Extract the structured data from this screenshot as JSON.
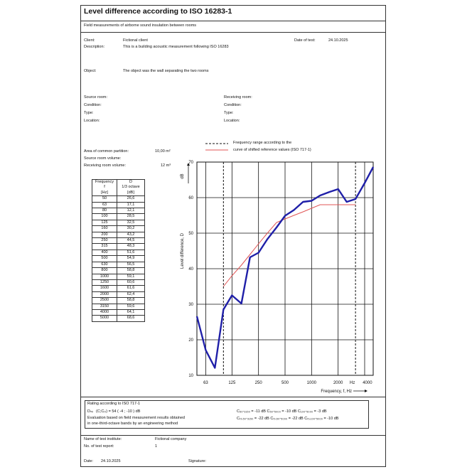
{
  "title": "Level difference according to ISO 16283-1",
  "subtitle": "Field measurements of airborne sound insulation between rooms",
  "client": {
    "label": "Client:",
    "value": "Fictional client"
  },
  "description": {
    "label": "Description:",
    "value": "This is a building acoustic measurement following ISO 16283"
  },
  "date_of_test": {
    "label": "Date of test:",
    "value": "24.10.2025"
  },
  "object": {
    "label": "Object:",
    "value": "The object was the wall separating the two rooms"
  },
  "source_room": {
    "room": "Source room:",
    "condition": "Condition:",
    "type": "Type:",
    "location": "Location:"
  },
  "receiving_room": {
    "room": "Receiving room:",
    "condition": "Condition:",
    "type": "Type:",
    "location": "Location:"
  },
  "legend": {
    "freq_range": "Frequency range according to the",
    "shifted_curve": "curve of shifted reference values (ISO 717-1)"
  },
  "partition": {
    "area_label": "Area of common partition:",
    "area_value": "10,00 m²",
    "source_volume_label": "Source room volume:",
    "receiving_volume_label": "Receiving room volume:",
    "receiving_volume_value": "12 m³"
  },
  "table": {
    "h1": "Frequency",
    "h1b": "f",
    "h1c": "[Hz]",
    "h2": "D",
    "h2b": "1/3 octave",
    "h2c": "[dB]",
    "rows": [
      [
        "50",
        "26,6"
      ],
      [
        "63",
        "17,1"
      ],
      [
        "80",
        "12,1"
      ],
      [
        "100",
        "28,5"
      ],
      [
        "125",
        "32,5"
      ],
      [
        "160",
        "30,2"
      ],
      [
        "200",
        "43,2"
      ],
      [
        "250",
        "44,5"
      ],
      [
        "315",
        "48,3"
      ],
      [
        "400",
        "51,6"
      ],
      [
        "500",
        "54,9"
      ],
      [
        "630",
        "56,5"
      ],
      [
        "800",
        "58,8"
      ],
      [
        "1000",
        "59,1"
      ],
      [
        "1250",
        "60,6"
      ],
      [
        "1600",
        "61,6"
      ],
      [
        "2000",
        "62,4"
      ],
      [
        "2500",
        "58,8"
      ],
      [
        "3150",
        "59,6"
      ],
      [
        "4000",
        "64,1"
      ],
      [
        "5000",
        "68,6"
      ]
    ]
  },
  "chart_data": {
    "type": "line",
    "ylabel": "Level difference, D",
    "yunit": "dB",
    "xlabel": "Frequency, f, Hz",
    "ylim": [
      10,
      70
    ],
    "yticks": [
      "10",
      "20",
      "30",
      "40",
      "50",
      "60",
      "70"
    ],
    "xticks": [
      "63",
      "125",
      "250",
      "500",
      "1000",
      "2000",
      "Hz",
      "4000"
    ],
    "x": [
      50,
      63,
      80,
      100,
      125,
      160,
      200,
      250,
      315,
      400,
      500,
      630,
      800,
      1000,
      1250,
      1600,
      2000,
      2500,
      3150,
      4000,
      5000
    ],
    "series": [
      {
        "values": [
          26.6,
          17.1,
          12.1,
          28.5,
          32.5,
          30.2,
          43.2,
          44.5,
          48.3,
          51.6,
          54.9,
          56.5,
          58.8,
          59.1,
          60.6,
          61.6,
          62.4,
          58.8,
          59.6,
          64.1,
          68.6
        ],
        "color": "#1f1fa8"
      },
      {
        "x": [
          100,
          125,
          160,
          200,
          250,
          315,
          400,
          500,
          630,
          800,
          1000,
          1250,
          1600,
          2000,
          2500,
          3150
        ],
        "values": [
          35,
          38,
          41,
          44,
          47,
          50,
          53,
          54,
          55,
          56,
          57,
          58,
          58,
          58,
          58,
          58
        ],
        "color": "#e05555"
      }
    ],
    "freq_range_lines": [
      100,
      3150
    ],
    "grid": true
  },
  "rating": {
    "title": "Rating according to ISO 717-1",
    "dnw_label": "Dₙᵥ",
    "dnw_formula": "(C;Cₜᵣ) =  54  (   -4   ;   -10  ) dB",
    "eval1": "Evaluation based on field measurement results obtained",
    "eval2": "in one-third-octave bands by an engineering method",
    "c1": "C₅₀-₃₁₅₀ =   -11  dB  C₅₀-₅₀₀₀ =   -10  dB  C₁₀₀-₅₀₀₀ =   -3  dB",
    "c2": "Cₜᵣ,₅₀-₃₁₅₀ =  -22  dB  Cₜᵣ,₅₀-₅₀₀₀ =  -22  dB  Cₜᵣ,₁₀₀-₅₀₀₀ =  -10  dB"
  },
  "institute": {
    "label": "Name of test institute:",
    "value": "Fictional company"
  },
  "report": {
    "label": "No. of test report:",
    "value": "1"
  },
  "footer": {
    "date_label": "Date:",
    "date_value": "24.10.2025",
    "signature_label": "Signature:"
  }
}
